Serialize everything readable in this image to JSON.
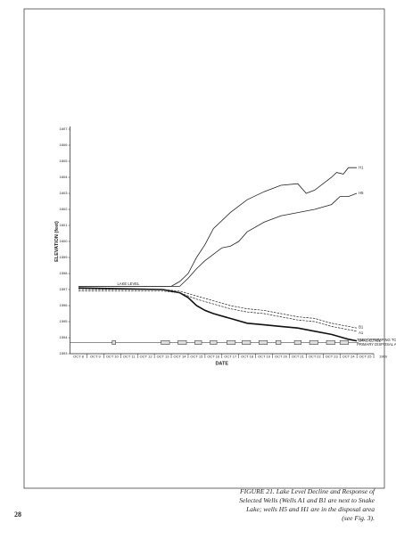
{
  "chart_data": {
    "type": "line",
    "y_label": "ELEVATION (feet)",
    "x_label": "DATE",
    "year_label": "1969",
    "annotation": "LAKE LEVEL",
    "pumping_label": [
      "TIME OF PUMPING TO",
      "PRIMARY DISPOSAL AREA"
    ],
    "ylim": [
      1593,
      1607
    ],
    "yticks": [
      1593,
      1594,
      1595,
      1596,
      1597,
      1598,
      1599,
      1600,
      1601,
      1602,
      1603,
      1604,
      1605,
      1606,
      1607
    ],
    "xlim": [
      7.5,
      25.5
    ],
    "xticks": [
      {
        "value": 8,
        "label": "OCT 8"
      },
      {
        "value": 9,
        "label": "OCT 9"
      },
      {
        "value": 10,
        "label": "OCT 10"
      },
      {
        "value": 11,
        "label": "OCT 11"
      },
      {
        "value": 12,
        "label": "OCT 12"
      },
      {
        "value": 13,
        "label": "OCT 13"
      },
      {
        "value": 14,
        "label": "OCT 14"
      },
      {
        "value": 15,
        "label": "OCT 15"
      },
      {
        "value": 16,
        "label": "OCT 16"
      },
      {
        "value": 17,
        "label": "OCT 17"
      },
      {
        "value": 18,
        "label": "OCT 18"
      },
      {
        "value": 19,
        "label": "OCT 19"
      },
      {
        "value": 20,
        "label": "OCT 20"
      },
      {
        "value": 21,
        "label": "OCT 21"
      },
      {
        "value": 22,
        "label": "OCT 22"
      },
      {
        "value": 23,
        "label": "OCT 23"
      },
      {
        "value": 24,
        "label": "OCT 24"
      },
      {
        "value": 25,
        "label": "OCT 25"
      }
    ],
    "series": [
      {
        "name": "H1",
        "color": "#222",
        "width": 0.8,
        "dashed": false,
        "x": [
          8,
          13.5,
          14,
          14.5,
          15,
          15.5,
          16,
          17,
          18,
          19,
          20,
          21,
          21.5,
          22,
          22.5,
          23,
          23.3,
          23.7,
          24,
          24.5
        ],
        "values": [
          1597.2,
          1597.2,
          1597.5,
          1598.0,
          1599.0,
          1599.8,
          1600.8,
          1601.8,
          1602.6,
          1603.1,
          1603.5,
          1603.6,
          1603.0,
          1603.2,
          1603.6,
          1604.0,
          1604.3,
          1604.2,
          1604.6,
          1604.6
        ]
      },
      {
        "name": "H5",
        "color": "#222",
        "width": 0.8,
        "dashed": false,
        "x": [
          8,
          14,
          14.5,
          15,
          15.5,
          16,
          16.5,
          17,
          17.5,
          18,
          19,
          20,
          21,
          22,
          23,
          23.5,
          24,
          24.5
        ],
        "values": [
          1597.2,
          1597.2,
          1597.7,
          1598.3,
          1598.8,
          1599.2,
          1599.6,
          1599.7,
          1600.0,
          1600.6,
          1601.2,
          1601.6,
          1601.8,
          1602.0,
          1602.3,
          1602.8,
          1602.8,
          1603.0
        ]
      },
      {
        "name": "LAKE LEVEL",
        "color": "#111",
        "width": 1.6,
        "dashed": false,
        "x": [
          8,
          13,
          14,
          14.5,
          15,
          15.5,
          16,
          17,
          18,
          19,
          20,
          21,
          22,
          23,
          24,
          24.5
        ],
        "values": [
          1597.1,
          1597.0,
          1596.8,
          1596.5,
          1596.0,
          1595.7,
          1595.5,
          1595.2,
          1594.9,
          1594.8,
          1594.7,
          1594.6,
          1594.4,
          1594.2,
          1593.9,
          1593.8
        ]
      },
      {
        "name": "B1",
        "color": "#222",
        "width": 0.7,
        "dashed": true,
        "x": [
          8,
          13,
          14,
          15,
          16,
          17,
          18,
          19,
          20,
          21,
          22,
          23,
          24,
          24.5
        ],
        "values": [
          1597.0,
          1597.0,
          1596.9,
          1596.6,
          1596.3,
          1596.0,
          1595.8,
          1595.7,
          1595.5,
          1595.3,
          1595.2,
          1594.9,
          1594.7,
          1594.6
        ]
      },
      {
        "name": "A1",
        "color": "#222",
        "width": 0.7,
        "dashed": true,
        "x": [
          8,
          13,
          14,
          15,
          16,
          17,
          18,
          19,
          20,
          21,
          22,
          23,
          24,
          24.5
        ],
        "values": [
          1596.9,
          1596.9,
          1596.8,
          1596.4,
          1596.1,
          1595.8,
          1595.6,
          1595.5,
          1595.3,
          1595.1,
          1595.0,
          1594.7,
          1594.5,
          1594.4
        ]
      }
    ],
    "pumping_periods": [
      [
        10.0,
        10.2
      ],
      [
        12.9,
        13.4
      ],
      [
        13.9,
        14.4
      ],
      [
        14.9,
        15.3
      ],
      [
        15.8,
        16.2
      ],
      [
        16.8,
        17.3
      ],
      [
        17.7,
        18.2
      ],
      [
        18.7,
        19.2
      ],
      [
        19.7,
        20.0
      ],
      [
        20.8,
        21.2
      ],
      [
        21.7,
        22.2
      ],
      [
        22.7,
        23.2
      ],
      [
        23.5,
        24.0
      ]
    ]
  },
  "caption": [
    "FIGURE 21. Lake Level Decline and Response of",
    "Selected Wells (Wells A1 and B1 are next to Snake",
    "Lake; wells H5 and H1 are in the disposal area",
    "(see Fig. 3)."
  ],
  "page_number": "28"
}
